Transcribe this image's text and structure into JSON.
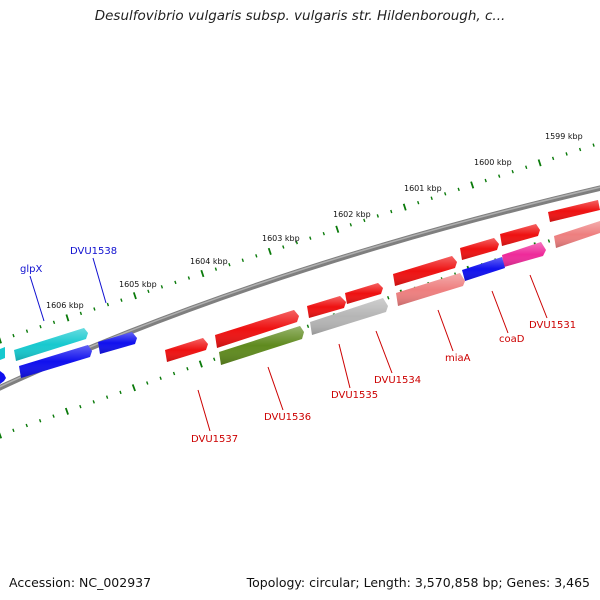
{
  "title": "Desulfovibrio vulgaris subsp. vulgaris str. Hildenborough, c...",
  "footer": {
    "accession": "Accession: NC_002937",
    "summary": "Topology: circular; Length: 3,570,858 bp; Genes: 3,465"
  },
  "scale_labels": [
    "1599 kbp",
    "1600 kbp",
    "1601 kbp",
    "1602 kbp",
    "1603 kbp",
    "1604 kbp",
    "1605 kbp",
    "1606 kbp"
  ],
  "gene_labels": [
    {
      "text": "DVU1538",
      "color": "#1010d0"
    },
    {
      "text": "glpX",
      "color": "#1010d0"
    },
    {
      "text": "DVU1531",
      "color": "#cc0000"
    },
    {
      "text": "coaD",
      "color": "#cc0000"
    },
    {
      "text": "miaA",
      "color": "#cc0000"
    },
    {
      "text": "DVU1534",
      "color": "#cc0000"
    },
    {
      "text": "DVU1535",
      "color": "#cc0000"
    },
    {
      "text": "DVU1536",
      "color": "#cc0000"
    },
    {
      "text": "DVU1537",
      "color": "#cc0000"
    }
  ],
  "colors": {
    "backbone": "#7f7f7f",
    "tick": "#0a7a0a",
    "red": "#ee1111",
    "pink_light": "#ee7f7f",
    "gray": "#b5b5b5",
    "olive": "#5f8a1e",
    "blue": "#1010ee",
    "magenta": "#ee2a9a",
    "cyan": "#17c9cf"
  }
}
